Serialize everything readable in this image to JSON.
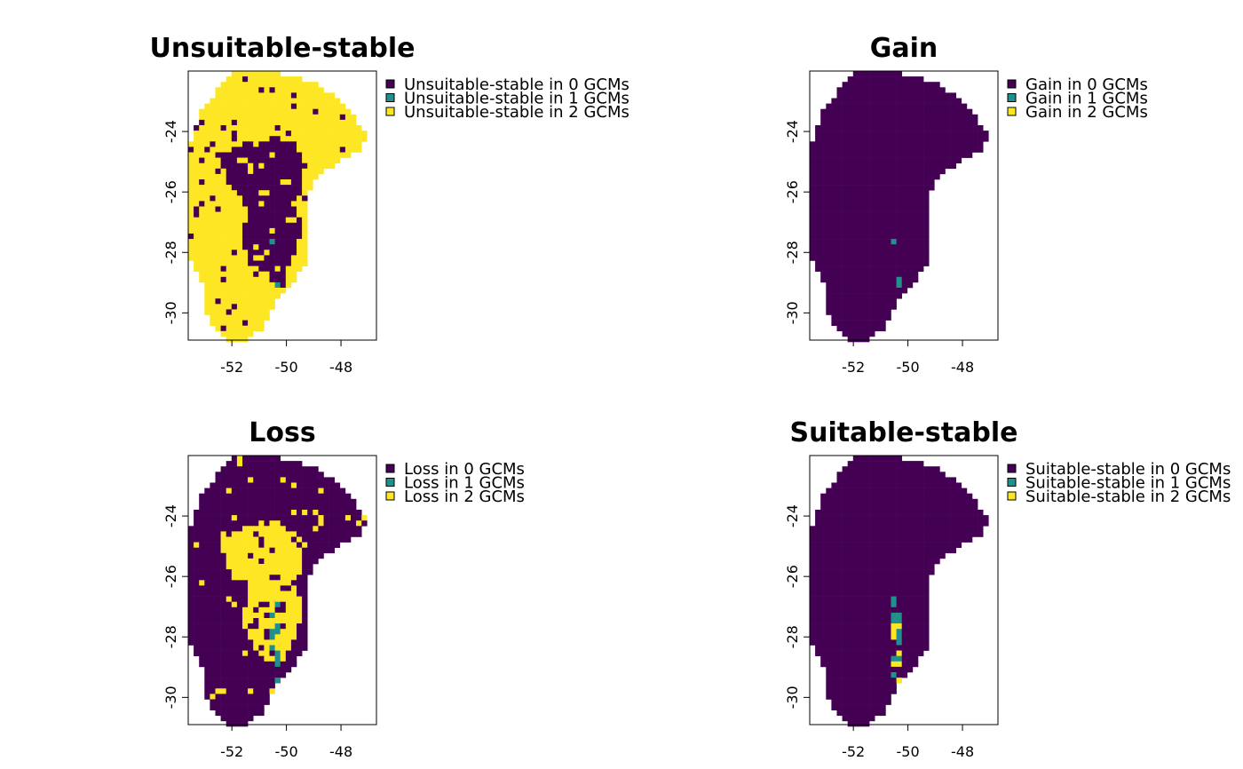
{
  "chart_data": [
    {
      "type": "heatmap",
      "title": "Unsuitable-stable",
      "xlabel": "",
      "ylabel": "",
      "x_ticks": [
        -52,
        -50,
        -48
      ],
      "y_ticks": [
        -24,
        -26,
        -28,
        -30
      ],
      "xlim": [
        -53.6,
        -46.7
      ],
      "ylim": [
        -30.9,
        -22.0
      ],
      "legend_position": "right",
      "grid": false,
      "legend": [
        "Unsuitable-stable in 0 GCMs",
        "Unsuitable-stable in 1 GCMs",
        "Unsuitable-stable in 2 GCMs"
      ],
      "colors": [
        "#440154",
        "#21908C",
        "#FDE725"
      ],
      "dominant_class": 2
    },
    {
      "type": "heatmap",
      "title": "Gain",
      "xlabel": "",
      "ylabel": "",
      "x_ticks": [
        -52,
        -50,
        -48
      ],
      "y_ticks": [
        -24,
        -26,
        -28,
        -30
      ],
      "xlim": [
        -53.6,
        -46.7
      ],
      "ylim": [
        -30.9,
        -22.0
      ],
      "legend_position": "right",
      "grid": false,
      "legend": [
        "Gain in 0 GCMs",
        "Gain in 1 GCMs",
        "Gain in 2 GCMs"
      ],
      "colors": [
        "#440154",
        "#21908C",
        "#FDE725"
      ],
      "dominant_class": 0
    },
    {
      "type": "heatmap",
      "title": "Loss",
      "xlabel": "",
      "ylabel": "",
      "x_ticks": [
        -52,
        -50,
        -48
      ],
      "y_ticks": [
        -24,
        -26,
        -28,
        -30
      ],
      "xlim": [
        -53.6,
        -46.7
      ],
      "ylim": [
        -30.9,
        -22.0
      ],
      "legend_position": "right",
      "grid": false,
      "legend": [
        "Loss in 0 GCMs",
        "Loss in 1 GCMs",
        "Loss in 2 GCMs"
      ],
      "colors": [
        "#440154",
        "#21908C",
        "#FDE725"
      ],
      "dominant_class": 0
    },
    {
      "type": "heatmap",
      "title": "Suitable-stable",
      "xlabel": "",
      "ylabel": "",
      "x_ticks": [
        -52,
        -50,
        -48
      ],
      "y_ticks": [
        -24,
        -26,
        -28,
        -30
      ],
      "xlim": [
        -53.6,
        -46.7
      ],
      "ylim": [
        -30.9,
        -22.0
      ],
      "legend_position": "right",
      "grid": false,
      "legend": [
        "Suitable-stable in 0 GCMs",
        "Suitable-stable in 1 GCMs",
        "Suitable-stable in 2 GCMs"
      ],
      "colors": [
        "#440154",
        "#21908C",
        "#FDE725"
      ],
      "dominant_class": 0
    }
  ]
}
